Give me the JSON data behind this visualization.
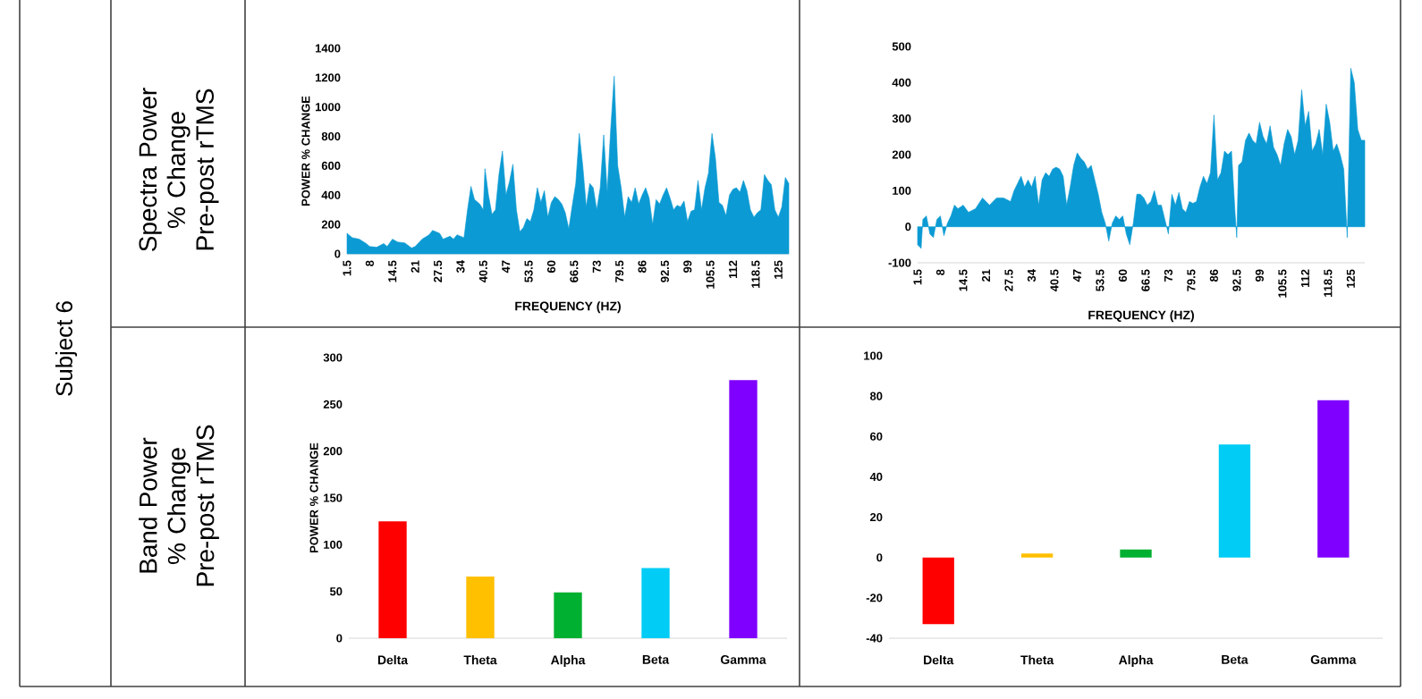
{
  "chart_data": [
    {
      "type": "area",
      "color": "#0b9ad3",
      "xlabel": "FREQUENCY (HZ)",
      "ylabel": "POWER % CHANGE",
      "annotations": [
        "Subject 6",
        "Spectra Power % Change Pre-post rTMS"
      ],
      "x": [
        1.5,
        3,
        5,
        7,
        8,
        10,
        12,
        13,
        14.5,
        16,
        18,
        20,
        21,
        23,
        25,
        26,
        28,
        29,
        31,
        32,
        33,
        35,
        36,
        37,
        38,
        39.5,
        40.5,
        41,
        42,
        43,
        44,
        45,
        46,
        47,
        48,
        49,
        50,
        51,
        52,
        53,
        54,
        55,
        56,
        57,
        58,
        59,
        60,
        61,
        62,
        63,
        64,
        65,
        66,
        67,
        68,
        69,
        70,
        71,
        72,
        73,
        74,
        75,
        76,
        77,
        78,
        79,
        80,
        81,
        82,
        83,
        84,
        85,
        86,
        87,
        88,
        89,
        90,
        91,
        92,
        93,
        94,
        95,
        96,
        97,
        98,
        99,
        100,
        101,
        102,
        103,
        104,
        105,
        106,
        107,
        108,
        109,
        110,
        111,
        112,
        113,
        114,
        115,
        116,
        117,
        118,
        119,
        120,
        121,
        122,
        123,
        124,
        125,
        126,
        127,
        128
      ],
      "values": [
        140,
        110,
        100,
        70,
        50,
        45,
        70,
        50,
        100,
        80,
        75,
        40,
        50,
        100,
        130,
        160,
        140,
        100,
        120,
        100,
        130,
        110,
        300,
        460,
        370,
        340,
        300,
        580,
        400,
        270,
        300,
        540,
        700,
        400,
        490,
        610,
        300,
        150,
        180,
        240,
        220,
        300,
        450,
        350,
        430,
        250,
        350,
        390,
        370,
        340,
        280,
        170,
        330,
        480,
        820,
        600,
        320,
        480,
        450,
        300,
        450,
        810,
        420,
        850,
        1210,
        600,
        450,
        250,
        390,
        350,
        450,
        340,
        400,
        450,
        380,
        200,
        370,
        340,
        400,
        450,
        380,
        300,
        330,
        320,
        360,
        220,
        290,
        300,
        500,
        300,
        450,
        550,
        820,
        650,
        350,
        330,
        260,
        400,
        440,
        450,
        420,
        500,
        430,
        300,
        250,
        280,
        300,
        540,
        500,
        470,
        300,
        250,
        320,
        520,
        480
      ],
      "xlim": [
        1.5,
        128
      ],
      "xticks": [
        1.5,
        8,
        14.5,
        21,
        27.5,
        34,
        40.5,
        47,
        53.5,
        60,
        66.5,
        73,
        79.5,
        86,
        92.5,
        99,
        105.5,
        112,
        118.5,
        125
      ],
      "ylim": [
        0,
        1400
      ],
      "yticks": [
        0,
        200,
        400,
        600,
        800,
        1000,
        1200,
        1400
      ]
    },
    {
      "type": "area",
      "color": "#0b9ad3",
      "xlabel": "FREQUENCY (HZ)",
      "x": [
        1.5,
        2.5,
        3,
        4,
        5,
        6,
        7,
        8,
        9,
        10,
        11,
        12,
        13,
        14.5,
        16,
        18,
        20,
        21,
        22,
        24,
        26,
        28,
        29,
        30,
        31,
        32,
        33,
        34,
        35,
        36,
        37,
        38,
        39,
        40,
        41,
        42,
        43,
        44,
        45,
        46,
        47,
        48,
        49,
        50,
        51,
        52,
        53,
        54,
        55,
        56,
        57,
        58,
        59,
        60,
        61,
        62,
        63,
        64,
        65,
        66,
        67,
        68,
        69,
        70,
        71,
        72,
        73,
        74,
        75,
        76,
        77,
        78,
        79,
        80,
        81,
        82,
        83,
        84,
        85,
        86,
        87,
        88,
        89,
        90,
        91,
        92,
        92.5,
        93,
        94,
        95,
        96,
        97,
        98,
        99,
        100,
        101,
        102,
        103,
        104,
        105,
        106,
        107,
        108,
        109,
        110,
        111,
        112,
        113,
        114,
        115,
        116,
        117,
        118,
        119,
        120,
        121,
        122,
        123,
        124,
        125,
        126,
        127,
        128,
        129
      ],
      "values": [
        -50,
        -60,
        20,
        30,
        -20,
        -30,
        20,
        30,
        -25,
        10,
        30,
        60,
        50,
        60,
        40,
        50,
        80,
        70,
        60,
        80,
        80,
        70,
        100,
        120,
        140,
        110,
        130,
        110,
        140,
        60,
        130,
        150,
        140,
        160,
        165,
        160,
        140,
        60,
        110,
        170,
        205,
        190,
        180,
        160,
        170,
        130,
        90,
        40,
        10,
        -40,
        10,
        30,
        20,
        30,
        -20,
        -50,
        10,
        90,
        90,
        80,
        60,
        70,
        100,
        60,
        60,
        20,
        -20,
        90,
        60,
        95,
        50,
        40,
        70,
        65,
        70,
        110,
        140,
        120,
        150,
        310,
        130,
        150,
        210,
        200,
        210,
        40,
        -30,
        170,
        180,
        240,
        260,
        240,
        230,
        290,
        250,
        230,
        280,
        220,
        200,
        170,
        230,
        270,
        250,
        200,
        240,
        380,
        280,
        320,
        210,
        230,
        270,
        200,
        340,
        290,
        210,
        230,
        200,
        160,
        -30,
        440,
        400,
        270,
        240,
        240
      ],
      "xlim": [
        1.5,
        129
      ],
      "xticks": [
        1.5,
        8,
        14.5,
        21,
        27.5,
        34,
        40.5,
        47,
        53.5,
        60,
        66.5,
        73,
        79.5,
        86,
        92.5,
        99,
        105.5,
        112,
        118.5,
        125
      ],
      "ylim": [
        -100,
        500
      ],
      "yticks": [
        -100,
        0,
        100,
        200,
        300,
        400,
        500
      ]
    },
    {
      "type": "bar",
      "ylabel": "POWER % CHANGE",
      "annotations": [
        "Band Power % Change Pre-post rTMS"
      ],
      "categories": [
        "Delta",
        "Theta",
        "Alpha",
        "Beta",
        "Gamma"
      ],
      "values": [
        125,
        66,
        49,
        75,
        276
      ],
      "colors": [
        "#ff0000",
        "#ffc000",
        "#00b030",
        "#00ccf5",
        "#7f00ff"
      ],
      "ylim": [
        0,
        300
      ],
      "yticks": [
        0,
        50,
        100,
        150,
        200,
        250,
        300
      ]
    },
    {
      "type": "bar",
      "categories": [
        "Delta",
        "Theta",
        "Alpha",
        "Beta",
        "Gamma"
      ],
      "values": [
        -33,
        2,
        4,
        56,
        78
      ],
      "colors": [
        "#ff0000",
        "#ffc000",
        "#00b030",
        "#00ccf5",
        "#7f00ff"
      ],
      "ylim": [
        -40,
        100
      ],
      "yticks": [
        -40,
        -20,
        0,
        20,
        40,
        60,
        80,
        100
      ]
    }
  ]
}
